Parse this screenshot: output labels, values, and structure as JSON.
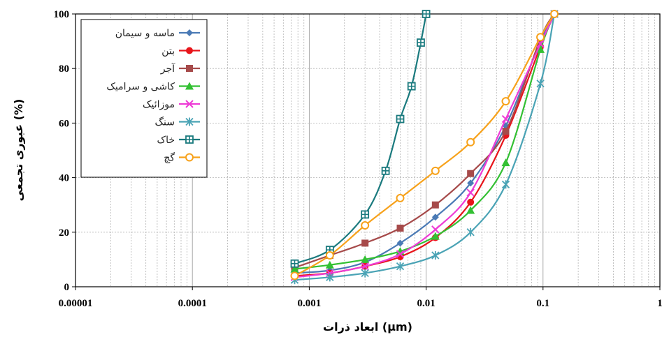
{
  "chart_data": {
    "type": "line",
    "xscale": "log",
    "xlim": [
      1e-05,
      1
    ],
    "ylim": [
      0,
      100
    ],
    "xlabel": "ابعاد ذرات (µm)",
    "ylabel": "عبوری تجمعی (%)",
    "xticks": [
      1e-05,
      0.0001,
      0.001,
      0.01,
      0.1,
      1
    ],
    "xtick_labels": [
      "0.00001",
      "0.0001",
      "0.001",
      "0.01",
      "0.1",
      "1"
    ],
    "yticks": [
      0,
      20,
      40,
      60,
      80,
      100
    ],
    "ytick_labels": [
      "0",
      "20",
      "40",
      "60",
      "80",
      "100"
    ],
    "grid": true,
    "legend_position": "top-left",
    "series": [
      {
        "name": "ماسه و سیمان",
        "color": "#4a7ab5",
        "marker": "diamond",
        "x": [
          0.00075,
          0.0015,
          0.003,
          0.006,
          0.012,
          0.024,
          0.048,
          0.095,
          0.125
        ],
        "y": [
          5,
          6,
          9,
          16,
          25.5,
          38,
          59,
          90,
          100
        ]
      },
      {
        "name": "بتن",
        "color": "#e8151b",
        "marker": "circle",
        "x": [
          0.00075,
          0.0015,
          0.003,
          0.006,
          0.012,
          0.024,
          0.048,
          0.095,
          0.125
        ],
        "y": [
          4,
          5,
          7.5,
          11,
          18,
          31,
          55.5,
          88,
          100
        ]
      },
      {
        "name": "آجر",
        "color": "#a64a4a",
        "marker": "square",
        "x": [
          0.00075,
          0.0015,
          0.003,
          0.006,
          0.012,
          0.024,
          0.048,
          0.095,
          0.125
        ],
        "y": [
          7,
          11.5,
          16,
          21.5,
          30,
          41.5,
          57,
          91,
          100
        ]
      },
      {
        "name": "کاشی و سرامیک",
        "color": "#33c033",
        "marker": "triangle",
        "x": [
          0.00075,
          0.0015,
          0.003,
          0.006,
          0.012,
          0.024,
          0.048,
          0.095,
          0.125
        ],
        "y": [
          6.5,
          8,
          10,
          13,
          18.5,
          28,
          45.5,
          87,
          100
        ]
      },
      {
        "name": "موزائیک",
        "color": "#ee3cd6",
        "marker": "x",
        "x": [
          0.00075,
          0.0015,
          0.003,
          0.006,
          0.012,
          0.024,
          0.048,
          0.095,
          0.125
        ],
        "y": [
          3.5,
          5,
          7.5,
          12,
          21,
          34.5,
          61.5,
          89,
          100
        ]
      },
      {
        "name": "سنگ",
        "color": "#4aa3b5",
        "marker": "star",
        "x": [
          0.00075,
          0.0015,
          0.003,
          0.006,
          0.012,
          0.024,
          0.048,
          0.095,
          0.125
        ],
        "y": [
          2.5,
          3.5,
          5,
          7.5,
          11.5,
          20,
          37.5,
          74.5,
          100
        ]
      },
      {
        "name": "خاک",
        "color": "#1a7a7e",
        "marker": "square-plus",
        "x": [
          0.00075,
          0.0015,
          0.003,
          0.0045,
          0.006,
          0.0075,
          0.009,
          0.01
        ],
        "y": [
          8.5,
          13.5,
          26.5,
          42.5,
          61.5,
          73.5,
          89.5,
          100
        ]
      },
      {
        "name": "گچ",
        "color": "#f7a21b",
        "marker": "open-circle",
        "x": [
          0.00075,
          0.0015,
          0.003,
          0.006,
          0.012,
          0.024,
          0.048,
          0.095,
          0.125
        ],
        "y": [
          4,
          11.5,
          22.5,
          32.5,
          42.5,
          53,
          68,
          91.5,
          100
        ]
      }
    ]
  }
}
